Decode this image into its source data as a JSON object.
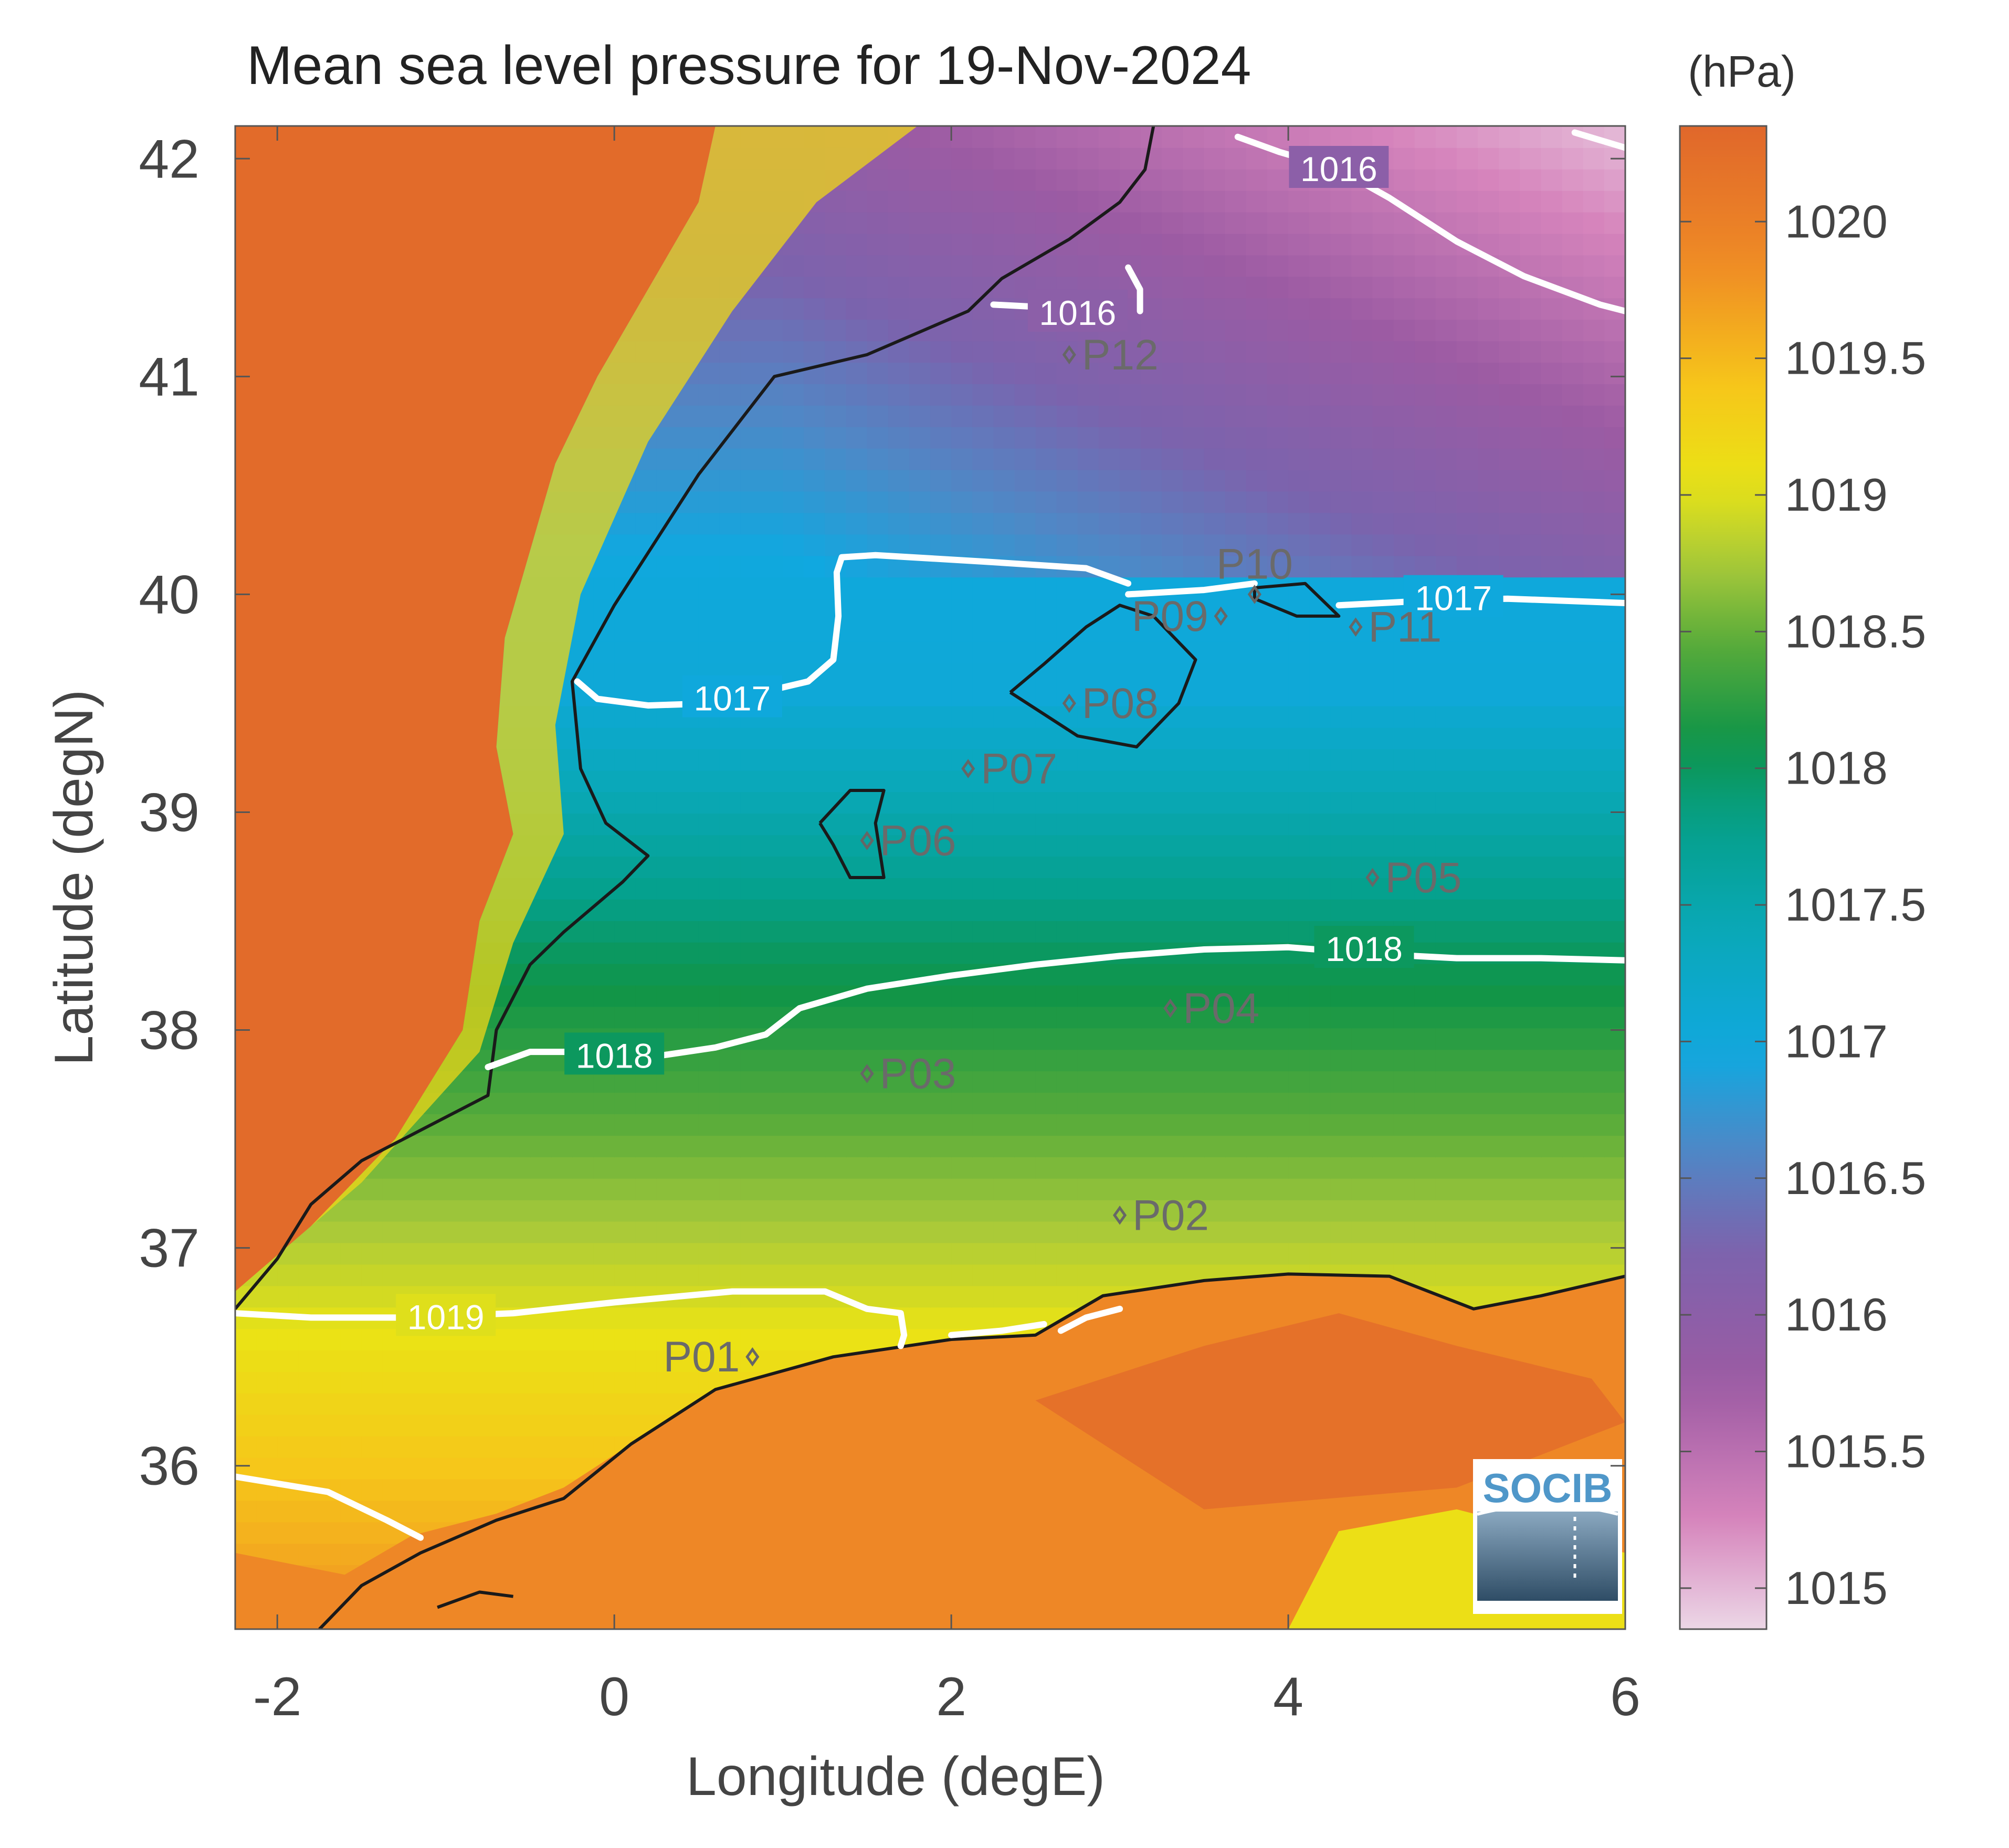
{
  "map": {
    "title": "Mean sea level pressure for 19-Nov-2024",
    "xlabel": "Longitude (degE)",
    "ylabel": "Latitude (degN)",
    "xlim": [
      -2.25,
      6
    ],
    "ylim": [
      35.25,
      42.15
    ],
    "xticks": [
      -2,
      0,
      2,
      4,
      6
    ],
    "xtick_labels": [
      "-2",
      "0",
      "2",
      "4",
      "6"
    ],
    "yticks": [
      36,
      37,
      38,
      39,
      40,
      41,
      42
    ],
    "ytick_labels": [
      "36",
      "37",
      "38",
      "39",
      "40",
      "41",
      "42"
    ],
    "logo_text": "SOCIB"
  },
  "colorbar": {
    "unit": "(hPa)",
    "range": [
      1014.85,
      1020.35
    ],
    "ticks": [
      1015,
      1015.5,
      1016,
      1016.5,
      1017,
      1017.5,
      1018,
      1018.5,
      1019,
      1019.5,
      1020
    ],
    "tick_labels": [
      "1015",
      "1015.5",
      "1016",
      "1016.5",
      "1017",
      "1017.5",
      "1018",
      "1018.5",
      "1019",
      "1019.5",
      "1020"
    ],
    "colormap": [
      [
        1014.85,
        "#ecd7e6"
      ],
      [
        1015.25,
        "#d684bc"
      ],
      [
        1015.75,
        "#9c5ba3"
      ],
      [
        1016.25,
        "#7b63ad"
      ],
      [
        1016.6,
        "#4f88c6"
      ],
      [
        1016.95,
        "#10a8e0"
      ],
      [
        1017.4,
        "#0aa8b8"
      ],
      [
        1017.8,
        "#05a08a"
      ],
      [
        1018.1,
        "#0f9448"
      ],
      [
        1018.45,
        "#57ab3a"
      ],
      [
        1018.75,
        "#a8c93a"
      ],
      [
        1019.05,
        "#eae315"
      ],
      [
        1019.4,
        "#f6c61a"
      ],
      [
        1019.85,
        "#ef8a25"
      ],
      [
        1020.35,
        "#e0672b"
      ]
    ]
  },
  "chart_data": {
    "type": "heatmap",
    "variable": "Mean sea level pressure",
    "date": "19-Nov-2024",
    "unit": "hPa",
    "contours": [
      {
        "level": 1016,
        "label": "1016",
        "lines": [
          [
            [
              2.25,
              41.33
            ],
            [
              2.5,
              41.32
            ],
            [
              2.75,
              41.3
            ]
          ],
          [
            [
              3.05,
              41.5
            ],
            [
              3.12,
              41.4
            ],
            [
              3.12,
              41.3
            ]
          ],
          [
            [
              3.7,
              42.1
            ],
            [
              3.95,
              42.03
            ],
            [
              4.3,
              41.95
            ],
            [
              4.6,
              41.82
            ],
            [
              5.0,
              41.62
            ],
            [
              5.4,
              41.46
            ],
            [
              5.85,
              41.33
            ],
            [
              6.0,
              41.3
            ]
          ],
          [
            [
              5.7,
              42.12
            ],
            [
              6.0,
              42.05
            ]
          ]
        ],
        "label_pos": [
          [
            2.75,
            41.29
          ],
          [
            4.3,
            41.95
          ]
        ]
      },
      {
        "level": 1017,
        "label": "1017",
        "lines": [
          [
            [
              -0.22,
              39.6
            ],
            [
              -0.1,
              39.52
            ],
            [
              0.2,
              39.49
            ],
            [
              0.6,
              39.5
            ],
            [
              1.15,
              39.6
            ],
            [
              1.3,
              39.7
            ],
            [
              1.33,
              39.9
            ],
            [
              1.32,
              40.1
            ],
            [
              1.35,
              40.17
            ],
            [
              1.55,
              40.18
            ],
            [
              2.2,
              40.15
            ],
            [
              2.8,
              40.12
            ],
            [
              3.05,
              40.05
            ]
          ],
          [
            [
              3.05,
              40.0
            ],
            [
              3.5,
              40.02
            ],
            [
              3.8,
              40.05
            ]
          ],
          [
            [
              4.3,
              39.95
            ],
            [
              4.8,
              39.97
            ],
            [
              5.3,
              39.98
            ],
            [
              6.0,
              39.96
            ]
          ]
        ],
        "label_pos": [
          [
            0.7,
            39.52
          ],
          [
            4.98,
            39.98
          ]
        ]
      },
      {
        "level": 1018,
        "label": "1018",
        "lines": [
          [
            [
              -0.75,
              37.83
            ],
            [
              -0.5,
              37.9
            ],
            [
              -0.2,
              37.9
            ],
            [
              0.25,
              37.88
            ],
            [
              0.6,
              37.92
            ],
            [
              0.9,
              37.98
            ],
            [
              1.1,
              38.1
            ],
            [
              1.5,
              38.19
            ],
            [
              2.0,
              38.25
            ],
            [
              2.5,
              38.3
            ],
            [
              3.0,
              38.34
            ],
            [
              3.5,
              38.37
            ],
            [
              4.0,
              38.38
            ],
            [
              4.5,
              38.35
            ],
            [
              5.0,
              38.33
            ],
            [
              5.5,
              38.33
            ],
            [
              6.0,
              38.32
            ]
          ]
        ],
        "label_pos": [
          [
            0.0,
            37.88
          ],
          [
            4.45,
            38.37
          ]
        ]
      },
      {
        "level": 1019,
        "label": "1019",
        "lines": [
          [
            [
              -2.25,
              36.7
            ],
            [
              -1.8,
              36.68
            ],
            [
              -1.2,
              36.68
            ],
            [
              -0.6,
              36.7
            ],
            [
              0.0,
              36.75
            ],
            [
              0.7,
              36.8
            ],
            [
              1.25,
              36.8
            ],
            [
              1.5,
              36.72
            ],
            [
              1.7,
              36.7
            ],
            [
              1.72,
              36.6
            ],
            [
              1.7,
              36.55
            ]
          ],
          [
            [
              2.0,
              36.6
            ],
            [
              2.3,
              36.62
            ],
            [
              2.55,
              36.65
            ]
          ],
          [
            [
              2.65,
              36.62
            ],
            [
              2.8,
              36.68
            ],
            [
              3.0,
              36.72
            ]
          ]
        ],
        "label_pos": [
          [
            -1.0,
            36.68
          ]
        ]
      },
      {
        "level": 1020,
        "label": "",
        "lines": [
          [
            [
              -2.25,
              35.95
            ],
            [
              -1.7,
              35.88
            ],
            [
              -1.35,
              35.75
            ],
            [
              -1.15,
              35.67
            ]
          ]
        ],
        "label_pos": []
      }
    ],
    "points": [
      {
        "name": "P01",
        "lon": 0.82,
        "lat": 36.5,
        "label_side": "left"
      },
      {
        "name": "P02",
        "lon": 3.0,
        "lat": 37.15,
        "label_side": "right"
      },
      {
        "name": "P03",
        "lon": 1.5,
        "lat": 37.8,
        "label_side": "right"
      },
      {
        "name": "P04",
        "lon": 3.3,
        "lat": 38.1,
        "label_side": "right"
      },
      {
        "name": "P05",
        "lon": 4.5,
        "lat": 38.7,
        "label_side": "right"
      },
      {
        "name": "P06",
        "lon": 1.5,
        "lat": 38.87,
        "label_side": "right"
      },
      {
        "name": "P07",
        "lon": 2.1,
        "lat": 39.2,
        "label_side": "right"
      },
      {
        "name": "P08",
        "lon": 2.7,
        "lat": 39.5,
        "label_side": "right"
      },
      {
        "name": "P09",
        "lon": 3.6,
        "lat": 39.9,
        "label_side": "left"
      },
      {
        "name": "P10",
        "lon": 3.8,
        "lat": 40.0,
        "label_side": "above"
      },
      {
        "name": "P11",
        "lon": 4.4,
        "lat": 39.85,
        "label_side": "right"
      },
      {
        "name": "P12",
        "lon": 2.7,
        "lat": 41.1,
        "label_side": "right"
      }
    ]
  }
}
